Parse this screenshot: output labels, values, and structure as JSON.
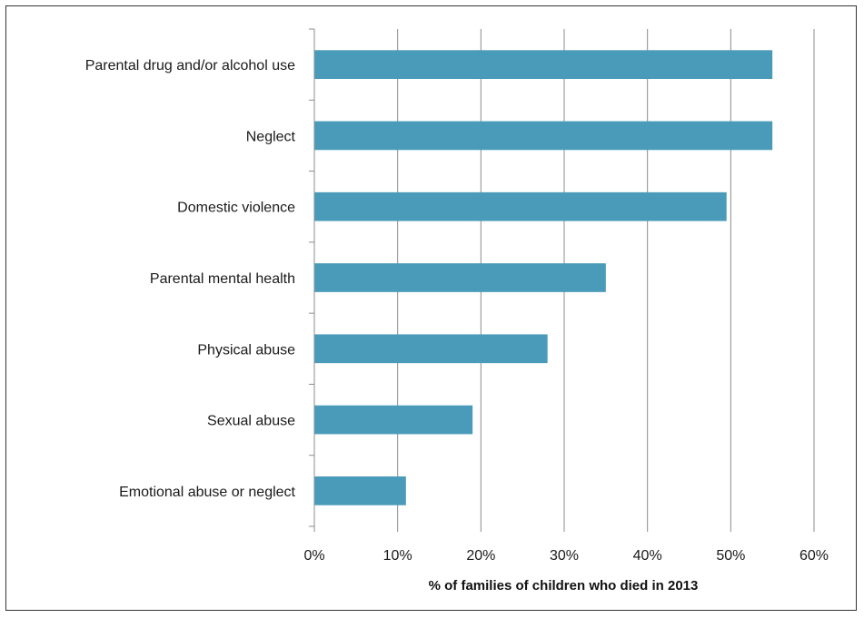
{
  "chart_data": {
    "type": "bar",
    "orientation": "horizontal",
    "categories": [
      "Parental drug and/or alcohol use",
      "Neglect",
      "Domestic violence",
      "Parental mental health",
      "Physical abuse",
      "Sexual abuse",
      "Emotional abuse or neglect"
    ],
    "values": [
      55,
      55,
      49.5,
      35,
      28,
      19,
      11
    ],
    "xlabel": "% of families of children who died in 2013",
    "ylabel": "",
    "xlim": [
      0,
      60
    ],
    "xticks": [
      "0%",
      "10%",
      "20%",
      "30%",
      "40%",
      "50%",
      "60%"
    ],
    "grid": "vertical",
    "bar_color": "#4A9BB9",
    "grid_color": "#8c8c8c"
  }
}
